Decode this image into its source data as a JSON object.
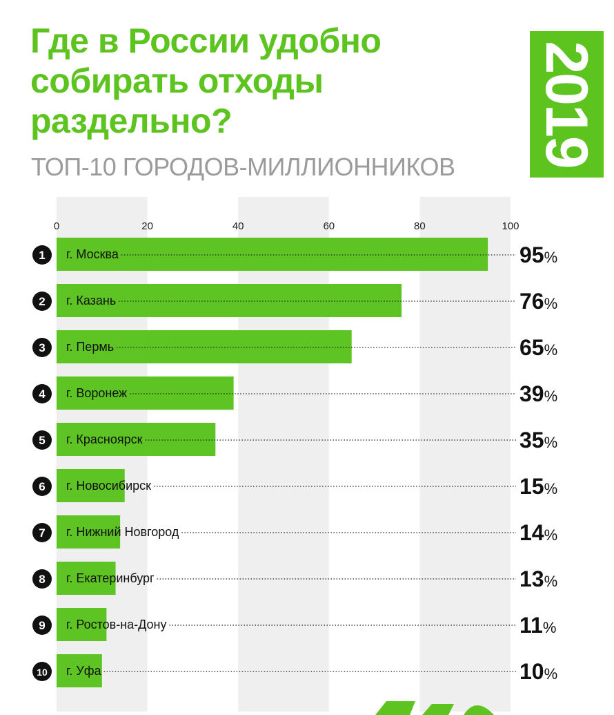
{
  "colors": {
    "accent": "#5cc31f",
    "bar": "#5dc424",
    "band": "#efefef",
    "ink": "#111111",
    "subtitle": "#9b9b9b"
  },
  "header": {
    "title_lines": [
      "Где в России удобно",
      "собирать отходы",
      "раздельно?"
    ],
    "subtitle": "ТОП-10 ГОРОДОВ-МИЛЛИОННИКОВ",
    "year": "2019"
  },
  "chart_data": {
    "type": "bar",
    "orientation": "horizontal",
    "title": "Где в России удобно собирать отходы раздельно?",
    "subtitle": "ТОП-10 ГОРОДОВ-МИЛЛИОННИКОВ",
    "xlim": [
      0,
      100
    ],
    "xticks": [
      0,
      20,
      40,
      60,
      80,
      100
    ],
    "grid": "alternating vertical bands",
    "value_suffix": "%",
    "categories": [
      "г. Москва",
      "г. Казань",
      "г. Пермь",
      "г. Воронеж",
      "г. Красноярск",
      "г. Новосибирск",
      "г. Нижний Новгород",
      "г. Екатеринбург",
      "г. Ростов-на-Дону",
      "г. Уфа"
    ],
    "ranks": [
      "1",
      "2",
      "3",
      "4",
      "5",
      "6",
      "7",
      "8",
      "9",
      "10"
    ],
    "values": [
      95,
      76,
      65,
      39,
      35,
      15,
      14,
      13,
      11,
      10
    ]
  }
}
